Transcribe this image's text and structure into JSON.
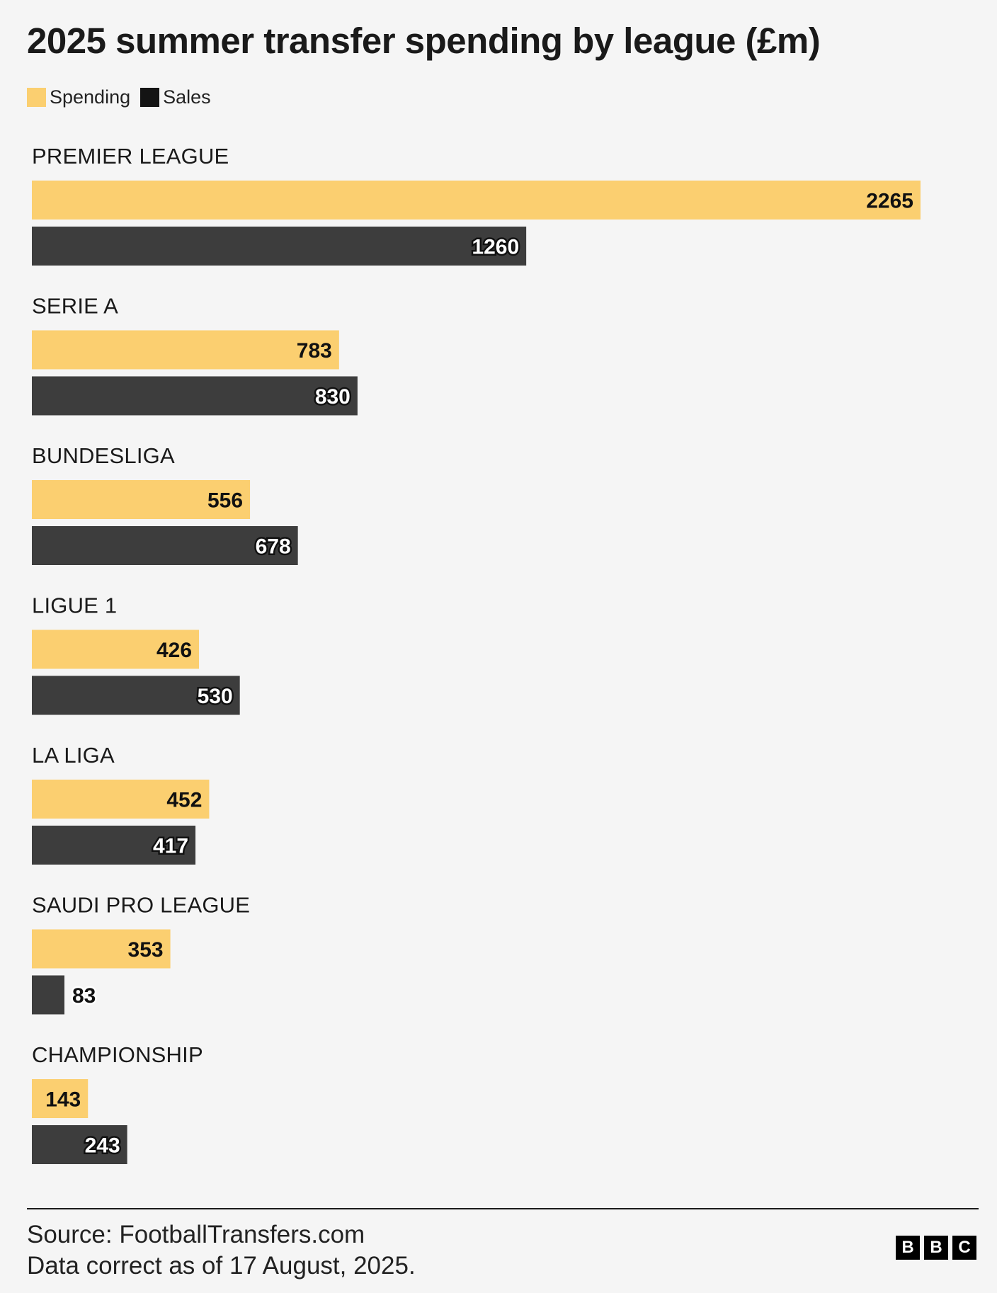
{
  "title": "2025 summer transfer spending by league (£m)",
  "legend": [
    {
      "label": "Spending",
      "color": "#fbcf70"
    },
    {
      "label": "Sales",
      "color": "#141414"
    }
  ],
  "chart_data": {
    "type": "bar",
    "orientation": "horizontal",
    "title": "2025 summer transfer spending by league (£m)",
    "categories": [
      "PREMIER LEAGUE",
      "SERIE A",
      "BUNDESLIGA",
      "LIGUE 1",
      "LA LIGA",
      "SAUDI PRO LEAGUE",
      "CHAMPIONSHIP"
    ],
    "series": [
      {
        "name": "Spending",
        "color": "#fbcf70",
        "values": [
          2265,
          783,
          556,
          426,
          452,
          353,
          143
        ]
      },
      {
        "name": "Sales",
        "color": "#3d3d3d",
        "values": [
          1260,
          830,
          678,
          530,
          417,
          83,
          243
        ]
      }
    ],
    "xlim": [
      0,
      2265
    ],
    "legend_position": "top-left",
    "grid": false
  },
  "footer": {
    "source": "Source: FootballTransfers.com",
    "note": "Data correct as of 17 August, 2025.",
    "logo_letters": [
      "B",
      "B",
      "C"
    ]
  }
}
